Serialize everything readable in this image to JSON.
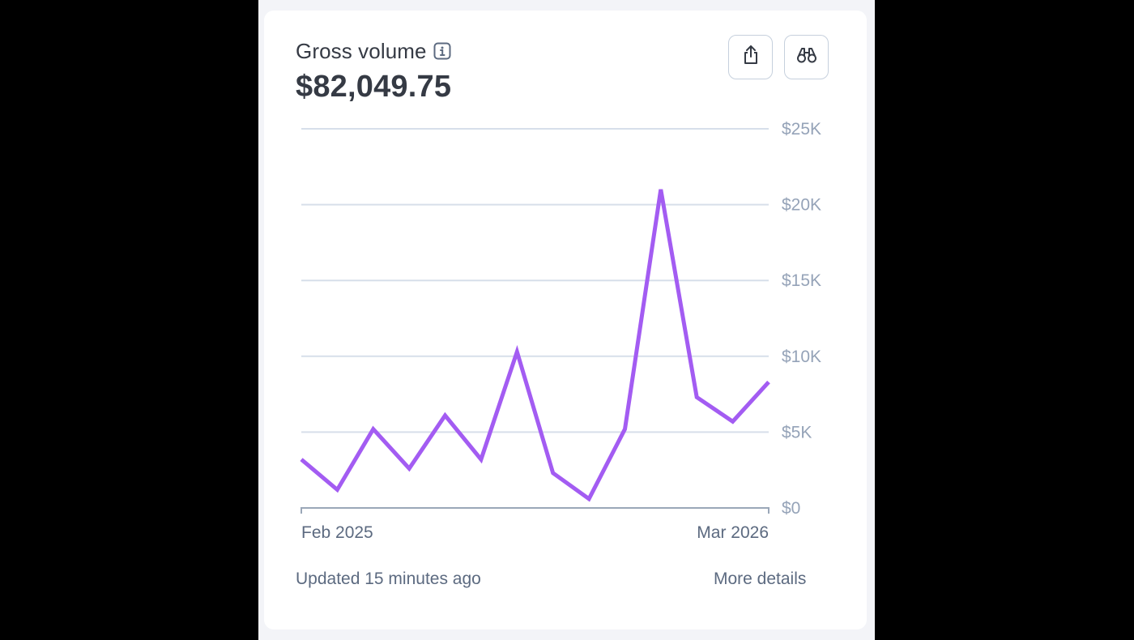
{
  "card": {
    "title": "Gross volume",
    "amount": "$82,049.75",
    "footer_status": "Updated 15 minutes ago",
    "footer_link": "More details"
  },
  "icons": {
    "info": "info-icon",
    "export": "share-export-icon",
    "explore": "binoculars-icon"
  },
  "colors": {
    "line": "#a35cf2",
    "grid": "#d7dfea",
    "text_primary": "#353a44",
    "text_secondary": "#5c6a80",
    "axis_text": "#95a3b8"
  },
  "chart_data": {
    "type": "line",
    "x_tick_labels": [
      "Feb 2025",
      "Mar 2026"
    ],
    "y_tick_labels": [
      "$0",
      "$5K",
      "$10K",
      "$15K",
      "$20K",
      "$25K"
    ],
    "y_ticks": [
      0,
      5000,
      10000,
      15000,
      20000,
      25000
    ],
    "ylim": [
      0,
      25000
    ],
    "grid": true,
    "series": [
      {
        "values": [
          3200,
          1200,
          5200,
          2600,
          6100,
          3200,
          10300,
          2300,
          600,
          5200,
          21000,
          7300,
          5700,
          8300
        ]
      }
    ]
  }
}
